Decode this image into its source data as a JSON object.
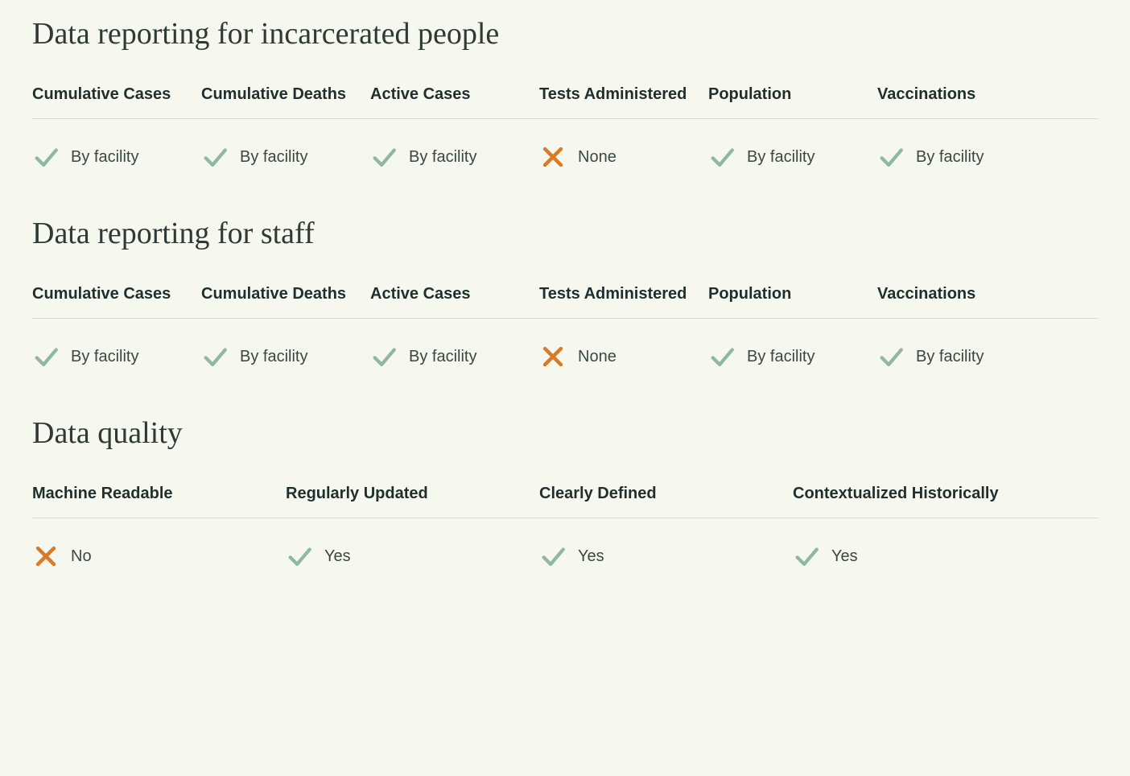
{
  "colors": {
    "background": "#f6f7ef",
    "text_dark": "#1f2e2e",
    "heading": "#2f3a36",
    "check": "#8fb99e",
    "cross": "#d97a26",
    "divider": "#d8dcd4"
  },
  "typography": {
    "heading_font": "Georgia, serif",
    "heading_size_pt": 28,
    "header_size_pt": 15,
    "value_size_pt": 15,
    "header_weight": 700
  },
  "sections": [
    {
      "id": "incarcerated",
      "title": "Data reporting for incarcerated people",
      "layout": "six",
      "columns": [
        {
          "header": "Cumulative Cases",
          "status": "check",
          "value": "By facility"
        },
        {
          "header": "Cumulative Deaths",
          "status": "check",
          "value": "By facility"
        },
        {
          "header": "Active Cases",
          "status": "check",
          "value": "By facility"
        },
        {
          "header": "Tests Administered",
          "status": "cross",
          "value": "None"
        },
        {
          "header": "Population",
          "status": "check",
          "value": "By facility"
        },
        {
          "header": "Vaccinations",
          "status": "check",
          "value": "By facility"
        }
      ]
    },
    {
      "id": "staff",
      "title": "Data reporting for staff",
      "layout": "six",
      "columns": [
        {
          "header": "Cumulative Cases",
          "status": "check",
          "value": "By facility"
        },
        {
          "header": "Cumulative Deaths",
          "status": "check",
          "value": "By facility"
        },
        {
          "header": "Active Cases",
          "status": "check",
          "value": "By facility"
        },
        {
          "header": "Tests Administered",
          "status": "cross",
          "value": "None"
        },
        {
          "header": "Population",
          "status": "check",
          "value": "By facility"
        },
        {
          "header": "Vaccinations",
          "status": "check",
          "value": "By facility"
        }
      ]
    },
    {
      "id": "quality",
      "title": "Data quality",
      "layout": "four",
      "columns": [
        {
          "header": "Machine Readable",
          "status": "cross",
          "value": "No"
        },
        {
          "header": "Regularly Updated",
          "status": "check",
          "value": "Yes"
        },
        {
          "header": "Clearly Defined",
          "status": "check",
          "value": "Yes"
        },
        {
          "header": "Contextualized Historically",
          "status": "check",
          "value": "Yes"
        }
      ]
    }
  ]
}
